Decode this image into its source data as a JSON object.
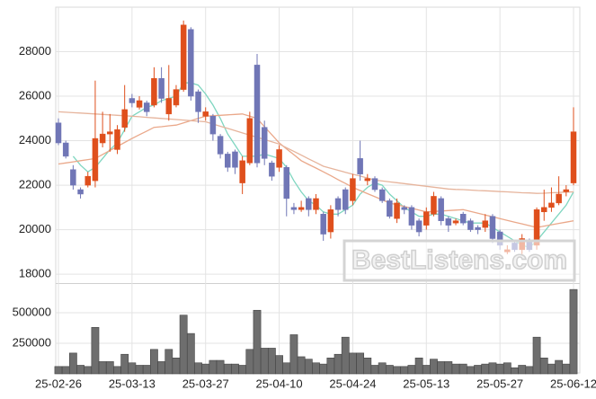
{
  "chart_data": {
    "type": "candlestick",
    "x": [
      "25-02-26",
      null,
      null,
      null,
      null,
      null,
      null,
      null,
      null,
      null,
      "25-03-13",
      null,
      null,
      null,
      null,
      null,
      null,
      null,
      null,
      null,
      "25-03-27",
      null,
      null,
      null,
      null,
      null,
      null,
      null,
      null,
      null,
      "25-04-10",
      null,
      null,
      null,
      null,
      null,
      null,
      null,
      null,
      null,
      "25-04-24",
      null,
      null,
      null,
      null,
      null,
      null,
      null,
      null,
      null,
      "25-05-13",
      null,
      null,
      null,
      null,
      null,
      null,
      null,
      null,
      null,
      "25-05-27",
      null,
      null,
      null,
      null,
      null,
      null,
      null,
      null,
      null,
      "25-06-12"
    ],
    "open": [
      24800,
      23900,
      22700,
      21800,
      22000,
      22200,
      23900,
      24300,
      23600,
      24600,
      25900,
      25500,
      25700,
      25600,
      26800,
      25200,
      25600,
      26300,
      29000,
      26200,
      25100,
      25100,
      24200,
      23400,
      23500,
      22100,
      23000,
      27400,
      24600,
      23000,
      22800,
      22800,
      21000,
      20900,
      21400,
      20900,
      20700,
      19900,
      21400,
      21800,
      21300,
      23200,
      22200,
      22300,
      21800,
      21300,
      20500,
      21000,
      21000,
      20400,
      20200,
      20700,
      21400,
      20500,
      20300,
      20700,
      20400,
      20100,
      20100,
      20600,
      19900,
      19000,
      19400,
      19100,
      19500,
      19300,
      20800,
      21000,
      21200,
      21700,
      22100
    ],
    "high": [
      25000,
      24000,
      22900,
      21900,
      22600,
      26700,
      25300,
      25200,
      24700,
      26500,
      26100,
      26000,
      25800,
      27300,
      27300,
      27400,
      26500,
      29400,
      29100,
      26300,
      25500,
      25200,
      24300,
      23500,
      23600,
      23300,
      25300,
      27900,
      24900,
      23100,
      23800,
      22900,
      21200,
      21300,
      21500,
      21600,
      20800,
      21100,
      21500,
      21900,
      22500,
      24000,
      22500,
      22400,
      21900,
      21400,
      21400,
      21100,
      21100,
      20500,
      21000,
      21700,
      21500,
      20600,
      20500,
      20800,
      20500,
      20200,
      20700,
      20700,
      20000,
      19300,
      19500,
      19800,
      19600,
      21000,
      21800,
      21900,
      22400,
      22000,
      25500
    ],
    "low": [
      23800,
      23200,
      21800,
      21400,
      21900,
      21900,
      23700,
      23500,
      23400,
      24400,
      25500,
      25400,
      25100,
      25500,
      25700,
      24900,
      25500,
      26200,
      25800,
      24800,
      24900,
      24000,
      23200,
      22600,
      22500,
      21600,
      22900,
      22800,
      22900,
      22200,
      22600,
      20600,
      20700,
      20800,
      20600,
      20700,
      19500,
      19600,
      20600,
      20700,
      21100,
      22200,
      22000,
      21700,
      21200,
      20500,
      20300,
      20700,
      20000,
      19700,
      20000,
      20600,
      20200,
      19900,
      20200,
      20200,
      19900,
      19800,
      19900,
      19400,
      19100,
      18900,
      19000,
      18900,
      19000,
      19100,
      20400,
      20800,
      21100,
      21500,
      22000
    ],
    "close": [
      23900,
      23300,
      22000,
      21600,
      22400,
      24100,
      24300,
      24400,
      24500,
      25400,
      25700,
      25800,
      25300,
      26800,
      25900,
      25900,
      26300,
      29200,
      26000,
      25300,
      25300,
      24300,
      23400,
      22800,
      22800,
      23100,
      25000,
      23000,
      23200,
      22400,
      23600,
      21400,
      20900,
      21000,
      20900,
      21400,
      19800,
      20900,
      20900,
      20900,
      22300,
      22500,
      22300,
      21800,
      21300,
      20600,
      21200,
      20900,
      20200,
      19900,
      20800,
      21500,
      20400,
      20200,
      20400,
      20300,
      20000,
      20000,
      20400,
      19600,
      19300,
      19100,
      19100,
      19600,
      19100,
      20900,
      21000,
      21200,
      21600,
      21800,
      24400
    ],
    "up_color": "#df4f1c",
    "down_color": "#7076b6",
    "ylim": [
      17600,
      30000
    ],
    "yticks": [
      18000,
      20000,
      22000,
      24000,
      26000,
      28000
    ],
    "grid": true,
    "lines": [
      {
        "color": "#7fd6c0",
        "values": [
          null,
          null,
          23300,
          22900,
          22600,
          22800,
          23200,
          23600,
          23900,
          24500,
          25100,
          25300,
          25500,
          25600,
          25800,
          25900,
          26000,
          26600,
          26600,
          26500,
          26100,
          25600,
          25000,
          24300,
          23800,
          23300,
          23300,
          23300,
          23400,
          23300,
          23200,
          22800,
          22200,
          21700,
          21300,
          21100,
          20800,
          20700,
          20700,
          20900,
          21100,
          21600,
          21900,
          22100,
          22000,
          21600,
          21300,
          21000,
          20800,
          20600,
          20600,
          20700,
          20700,
          20600,
          20500,
          20400,
          20300,
          20300,
          20300,
          20100,
          19900,
          19700,
          19500,
          19300,
          19200,
          19500,
          19900,
          20300,
          20700,
          21100,
          21700
        ]
      },
      {
        "color": "#eaa88a",
        "values": [
          22950,
          23000,
          23050,
          23100,
          23150,
          23200,
          23380,
          23560,
          23740,
          23920,
          24100,
          24270,
          24430,
          24600,
          24630,
          24670,
          24700,
          24800,
          24900,
          25000,
          25100,
          25120,
          25140,
          25160,
          25180,
          25200,
          25100,
          25000,
          24630,
          24270,
          23900,
          23630,
          23370,
          23100,
          22930,
          22770,
          22600,
          22430,
          22250,
          22080,
          21900,
          21760,
          21620,
          21480,
          21340,
          21200,
          21120,
          21040,
          20960,
          20880,
          20800,
          20820,
          20840,
          20860,
          20880,
          20900,
          20820,
          20740,
          20660,
          20580,
          20500,
          20420,
          20340,
          20260,
          20180,
          20100,
          20160,
          20220,
          20280,
          20340,
          20400
        ]
      },
      {
        "color": "#e6b49c",
        "values": [
          25300,
          25280,
          25260,
          25240,
          25220,
          25200,
          25180,
          25160,
          25140,
          25120,
          25100,
          25075,
          25050,
          25025,
          25000,
          24975,
          24950,
          24925,
          24900,
          24875,
          24850,
          24750,
          24650,
          24550,
          24450,
          24350,
          24250,
          24150,
          24050,
          23950,
          23850,
          23680,
          23520,
          23350,
          23180,
          23020,
          22850,
          22760,
          22670,
          22580,
          22490,
          22410,
          22320,
          22230,
          22190,
          22150,
          22110,
          22070,
          22030,
          21990,
          21950,
          21910,
          21870,
          21830,
          21810,
          21800,
          21780,
          21760,
          21750,
          21730,
          21710,
          21700,
          21680,
          21660,
          21650,
          21630,
          21640,
          21660,
          21670,
          21690,
          21700
        ]
      }
    ],
    "volume": {
      "color": "#6e6e6e",
      "ylim": [
        0,
        735000
      ],
      "yticks": [
        250000,
        500000
      ],
      "values": [
        60000,
        60000,
        170000,
        70000,
        60000,
        380000,
        100000,
        100000,
        60000,
        160000,
        90000,
        70000,
        70000,
        200000,
        100000,
        200000,
        130000,
        480000,
        330000,
        90000,
        80000,
        110000,
        110000,
        80000,
        80000,
        70000,
        200000,
        520000,
        210000,
        210000,
        150000,
        90000,
        320000,
        140000,
        120000,
        90000,
        80000,
        130000,
        160000,
        300000,
        170000,
        170000,
        130000,
        70000,
        90000,
        70000,
        60000,
        60000,
        70000,
        130000,
        70000,
        120000,
        100000,
        100000,
        80000,
        80000,
        60000,
        70000,
        80000,
        90000,
        80000,
        90000,
        50000,
        70000,
        60000,
        300000,
        130000,
        80000,
        110000,
        80000,
        690000
      ]
    },
    "watermark": "BestListens.com"
  }
}
